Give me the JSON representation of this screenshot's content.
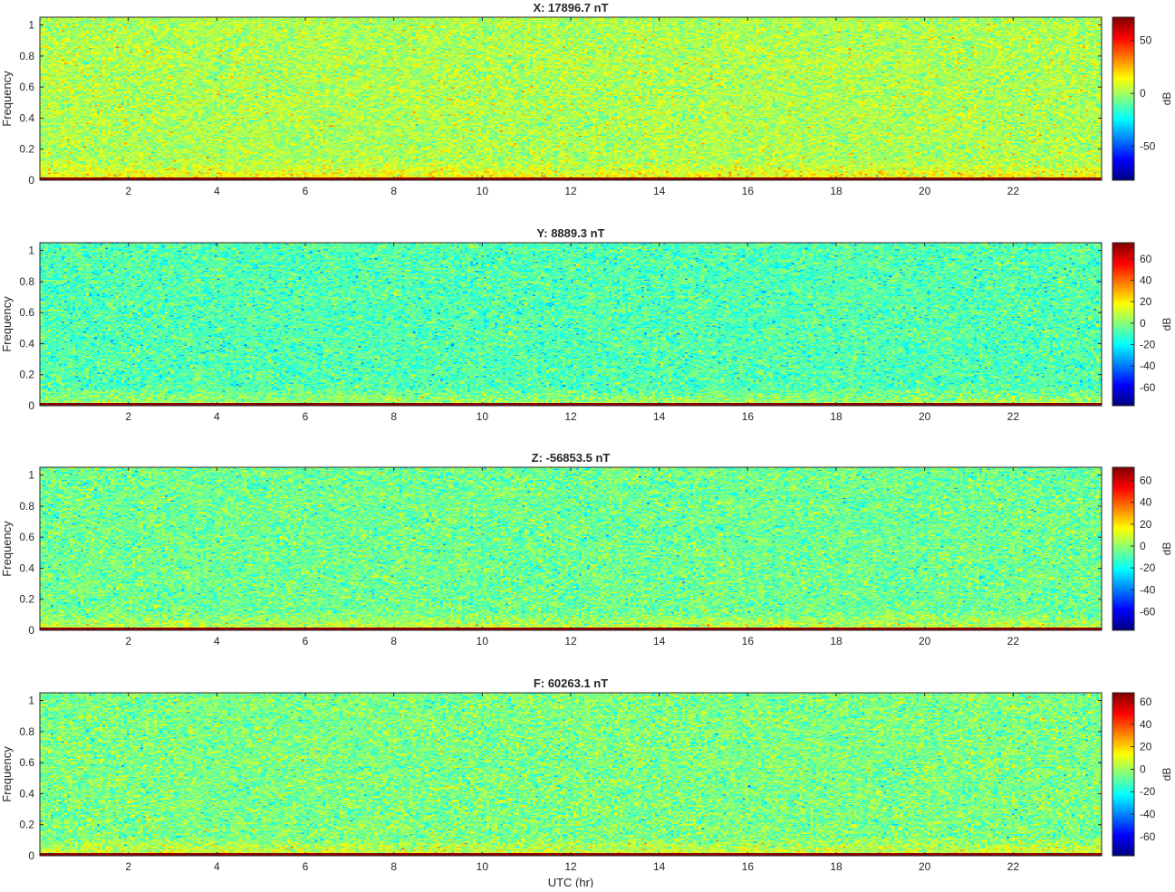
{
  "colors": {
    "background": "#ffffff",
    "axes": "#262626",
    "colormap": "jet",
    "colormap_stops": [
      "#00008f",
      "#0000ff",
      "#0080ff",
      "#00ffff",
      "#80ff80",
      "#ffff00",
      "#ff8000",
      "#ff0000",
      "#800000"
    ]
  },
  "figure": {
    "xlabel": "UTC (hr)"
  },
  "chart_data": [
    {
      "type": "heatmap",
      "title": "X: 17896.7 nT",
      "xlabel": "",
      "ylabel": "Frequency",
      "xlim": [
        0,
        24
      ],
      "ylim": [
        0,
        1.05
      ],
      "xticks": [
        2,
        4,
        6,
        8,
        10,
        12,
        14,
        16,
        18,
        20,
        22
      ],
      "yticks": [
        0,
        0.2,
        0.4,
        0.6,
        0.8,
        1
      ],
      "colorbar": {
        "label": "dB",
        "ticks": [
          -50,
          0,
          50
        ],
        "clim": [
          -82,
          72
        ]
      },
      "noise_floor_db": 2,
      "low_freq_band_db": 72,
      "grid": false
    },
    {
      "type": "heatmap",
      "title": "Y: 8889.3 nT",
      "xlabel": "",
      "ylabel": "Frequency",
      "xlim": [
        0,
        24
      ],
      "ylim": [
        0,
        1.05
      ],
      "xticks": [
        2,
        4,
        6,
        8,
        10,
        12,
        14,
        16,
        18,
        20,
        22
      ],
      "yticks": [
        0,
        0.2,
        0.4,
        0.6,
        0.8,
        1
      ],
      "colorbar": {
        "label": "dB",
        "ticks": [
          -60,
          -40,
          -20,
          0,
          20,
          40,
          60
        ],
        "clim": [
          -77,
          75
        ]
      },
      "noise_floor_db": -8,
      "low_freq_band_db": 75,
      "grid": false
    },
    {
      "type": "heatmap",
      "title": "Z: -56853.5 nT",
      "xlabel": "",
      "ylabel": "Frequency",
      "xlim": [
        0,
        24
      ],
      "ylim": [
        0,
        1.05
      ],
      "xticks": [
        2,
        4,
        6,
        8,
        10,
        12,
        14,
        16,
        18,
        20,
        22
      ],
      "yticks": [
        0,
        0.2,
        0.4,
        0.6,
        0.8,
        1
      ],
      "colorbar": {
        "label": "dB",
        "ticks": [
          -60,
          -40,
          -20,
          0,
          20,
          40,
          60
        ],
        "clim": [
          -77,
          72
        ]
      },
      "noise_floor_db": -5,
      "low_freq_band_db": 72,
      "grid": false
    },
    {
      "type": "heatmap",
      "title": "F: 60263.1 nT",
      "xlabel": "UTC (hr)",
      "ylabel": "Frequency",
      "xlim": [
        0,
        24
      ],
      "ylim": [
        0,
        1.05
      ],
      "xticks": [
        2,
        4,
        6,
        8,
        10,
        12,
        14,
        16,
        18,
        20,
        22
      ],
      "yticks": [
        0,
        0.2,
        0.4,
        0.6,
        0.8,
        1
      ],
      "colorbar": {
        "label": "dB",
        "ticks": [
          -60,
          -40,
          -20,
          0,
          20,
          40,
          60
        ],
        "clim": [
          -77,
          68
        ]
      },
      "noise_floor_db": -5,
      "low_freq_band_db": 68,
      "grid": false
    }
  ]
}
